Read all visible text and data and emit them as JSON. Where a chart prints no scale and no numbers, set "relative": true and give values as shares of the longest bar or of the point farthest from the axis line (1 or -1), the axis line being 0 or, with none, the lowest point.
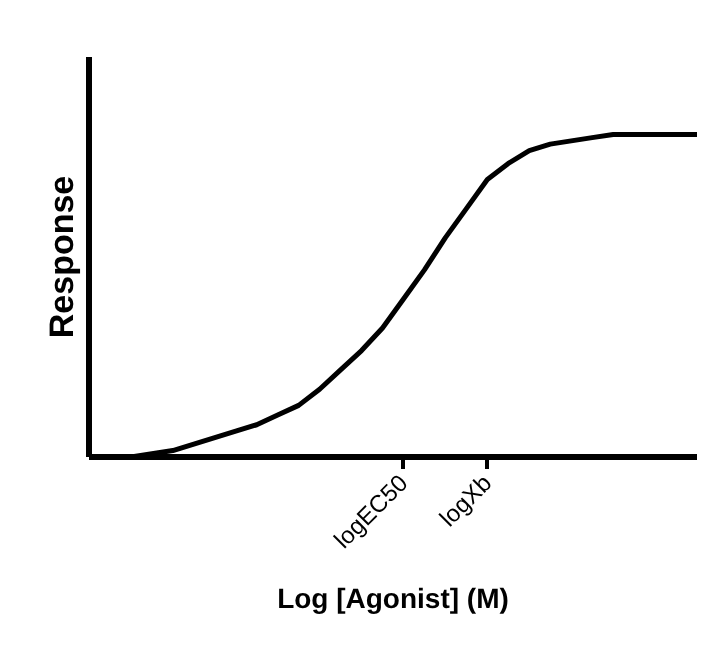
{
  "chart_data": {
    "type": "line",
    "relative": true,
    "xlabel": "Log [Agonist] (M)",
    "ylabel": "Response",
    "categories": [
      null,
      null,
      null,
      null,
      null,
      null,
      null,
      null,
      null,
      null,
      null,
      null,
      null,
      null,
      null,
      "logEC50",
      null,
      null,
      null,
      "logXb",
      null,
      null,
      null,
      null,
      null,
      null,
      null,
      null,
      null,
      null
    ],
    "series": [
      {
        "color": "#000000",
        "values": [
          0,
          0,
          0,
          0.01,
          0.02,
          0.04,
          0.06,
          0.08,
          0.1,
          0.13,
          0.16,
          0.21,
          0.27,
          0.33,
          0.4,
          0.49,
          0.58,
          0.68,
          0.77,
          0.86,
          0.91,
          0.95,
          0.97,
          0.98,
          0.99,
          1,
          1,
          1,
          1,
          1
        ]
      }
    ],
    "marker": "none",
    "line_style": "solid",
    "grid": false
  }
}
